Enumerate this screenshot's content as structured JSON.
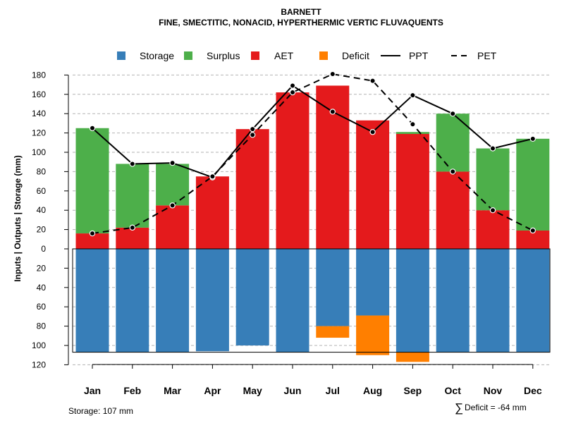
{
  "chart_data": {
    "type": "bar",
    "title": "BARNETT",
    "subtitle": "FINE, SMECTITIC, NONACID, HYPERTHERMIC VERTIC FLUVAQUENTS",
    "ylabel": "Inputs | Outputs | Storage     (mm)",
    "ylim": [
      -120,
      180
    ],
    "y_ticks": [
      180,
      160,
      140,
      120,
      100,
      80,
      60,
      40,
      20,
      0,
      -20,
      -40,
      -60,
      -80,
      -100,
      -120
    ],
    "y_tick_labels": [
      "180",
      "160",
      "140",
      "120",
      "100",
      "80",
      "60",
      "40",
      "20",
      "0",
      "20",
      "40",
      "60",
      "80",
      "100",
      "120"
    ],
    "categories": [
      "Jan",
      "Feb",
      "Mar",
      "Apr",
      "May",
      "Jun",
      "Jul",
      "Aug",
      "Sep",
      "Oct",
      "Nov",
      "Dec"
    ],
    "series": [
      {
        "name": "Storage",
        "color": "#377EB8",
        "values": [
          107,
          107,
          107,
          106,
          100,
          107,
          80,
          69,
          107,
          107,
          107,
          107
        ]
      },
      {
        "name": "Surplus",
        "color": "#4DAF4A",
        "values": [
          109,
          66,
          43,
          0,
          0,
          0,
          0,
          0,
          2,
          60,
          64,
          95
        ]
      },
      {
        "name": "AET",
        "color": "#E41A1C",
        "values": [
          16,
          22,
          45,
          75,
          124,
          162,
          169,
          133,
          119,
          80,
          40,
          19
        ]
      },
      {
        "name": "Deficit",
        "color": "#FF7F00",
        "values": [
          0,
          0,
          0,
          0,
          0,
          0,
          12,
          41,
          10,
          0,
          0,
          0
        ]
      },
      {
        "name": "PPT",
        "color": "#000000",
        "style": "solid",
        "values": [
          125,
          88,
          89,
          74,
          124,
          169,
          142,
          121,
          159,
          140,
          104,
          114
        ]
      },
      {
        "name": "PET",
        "color": "#000000",
        "style": "dashed",
        "values": [
          16,
          22,
          45,
          75,
          118,
          162,
          181,
          174,
          129,
          80,
          40,
          19
        ]
      }
    ],
    "storage_capacity": 107,
    "legend": [
      "Storage",
      "Surplus",
      "AET",
      "Deficit",
      "PPT",
      "PET"
    ],
    "legend_position": "top",
    "grid": true,
    "footer_left": "Storage: 107 mm",
    "footer_right_symbol": "∑",
    "footer_right": "Deficit = -64 mm"
  }
}
